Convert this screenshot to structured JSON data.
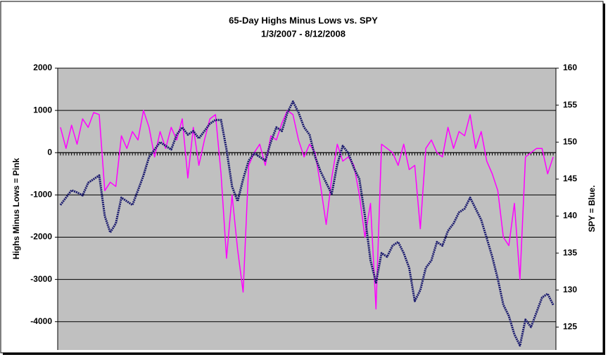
{
  "chart_data": {
    "type": "line",
    "title": "65-Day Highs Minus Lows vs. SPY",
    "subtitle": "1/3/2007 - 8/12/2008",
    "y_label": "Highs Minus Lows = Pink",
    "y2_label": "SPY = Blue.",
    "ylim": [
      -4670,
      2000
    ],
    "yticks": [
      -4000,
      -3000,
      -2000,
      -1000,
      0,
      1000,
      2000
    ],
    "y2lim": [
      121.9,
      160
    ],
    "y2ticks": [
      125,
      130,
      135,
      140,
      145,
      150,
      155,
      160
    ],
    "grid": true,
    "series": [
      {
        "name": "Highs Minus Lows",
        "color": "#ff00ff",
        "values": [
          600,
          100,
          650,
          200,
          800,
          600,
          950,
          900,
          -900,
          -700,
          -800,
          400,
          100,
          500,
          300,
          1000,
          600,
          -100,
          500,
          100,
          600,
          300,
          800,
          -600,
          600,
          -300,
          300,
          800,
          900,
          -500,
          -2500,
          -1000,
          -2300,
          -3300,
          -300,
          0,
          200,
          -300,
          400,
          300,
          700,
          1000,
          900,
          300,
          -100,
          200,
          0,
          -800,
          -1700,
          -600,
          200,
          -200,
          -100,
          -300,
          -1000,
          -2000,
          -1200,
          -3700,
          200,
          100,
          0,
          -300,
          200,
          -400,
          -300,
          -1800,
          100,
          300,
          0,
          -100,
          600,
          100,
          500,
          400,
          900,
          100,
          500,
          -200,
          -500,
          -900,
          -2000,
          -2200,
          -1200,
          -3000,
          -100,
          0,
          100,
          100,
          -500,
          -100
        ]
      },
      {
        "name": "SPY",
        "color": "#1a1a6e",
        "axis": "y2",
        "values": [
          141.5,
          142.5,
          143.5,
          143.2,
          142.8,
          144.5,
          145,
          145.5,
          140,
          137.8,
          139,
          142.5,
          142,
          141.5,
          143.5,
          145.5,
          148,
          149,
          150,
          149.5,
          149,
          151,
          152,
          151,
          151.5,
          150.5,
          151.5,
          152.5,
          153,
          153,
          149,
          144,
          142,
          145,
          147.5,
          148.5,
          148,
          147.5,
          150,
          152,
          151.5,
          154,
          155.5,
          154,
          152,
          151,
          148,
          146,
          144.5,
          143,
          147,
          149.5,
          148.5,
          146.5,
          145,
          140,
          134,
          131,
          135,
          134.5,
          136,
          136.5,
          135,
          133,
          128.5,
          130,
          133,
          134,
          136.5,
          136,
          138,
          139,
          140.5,
          141,
          142.5,
          141,
          139.5,
          137,
          134.5,
          131.5,
          128,
          126.5,
          124,
          122.5,
          126,
          125,
          127,
          129,
          129.5,
          128
        ]
      }
    ]
  }
}
